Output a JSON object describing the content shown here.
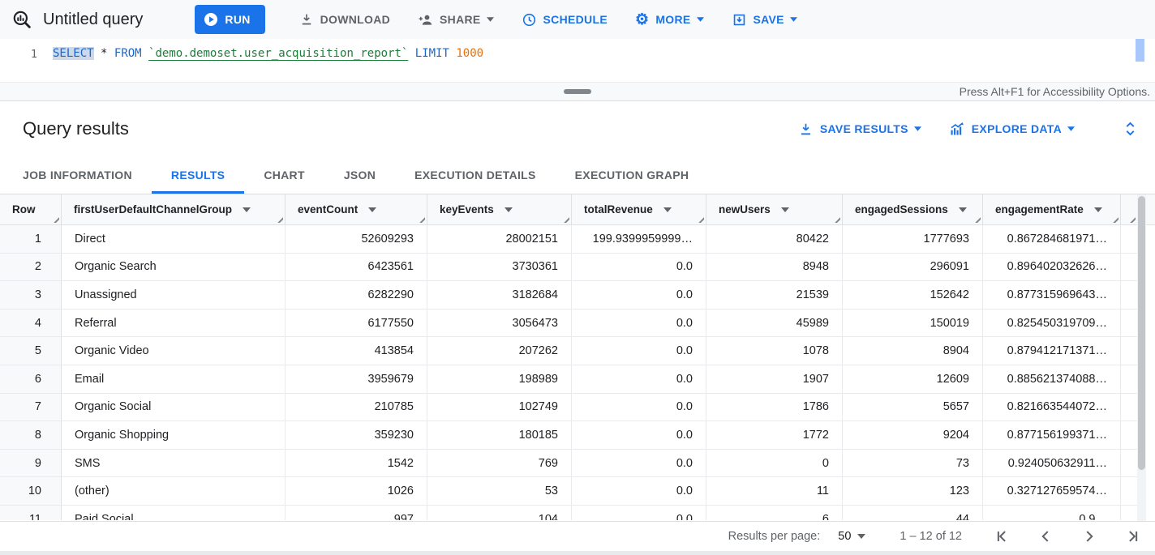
{
  "toolbar": {
    "query_icon": "query-magnifier-icon",
    "title": "Untitled query",
    "run": {
      "label": "RUN",
      "icon": "play-circle-icon"
    },
    "download": {
      "label": "DOWNLOAD",
      "icon": "download-icon"
    },
    "share": {
      "label": "SHARE",
      "icon": "person-add-icon"
    },
    "schedule": {
      "label": "SCHEDULE",
      "icon": "clock-icon"
    },
    "more": {
      "label": "MORE",
      "icon": "gear-icon"
    },
    "save": {
      "label": "SAVE",
      "icon": "save-icon"
    }
  },
  "editor": {
    "line_number": "1",
    "code": {
      "select": "SELECT",
      "star": "*",
      "from": "FROM",
      "table_ref": "`demo.demoset.user_acquisition_report`",
      "limit": "LIMIT",
      "limit_value": "1000"
    }
  },
  "statusbar": {
    "accessibility_hint": "Press Alt+F1 for Accessibility Options."
  },
  "results_header": {
    "title": "Query results",
    "save_results": {
      "label": "SAVE RESULTS",
      "icon": "download-icon"
    },
    "explore_data": {
      "label": "EXPLORE DATA",
      "icon": "chart-insights-icon"
    },
    "expand_icon": "unfold-icon"
  },
  "tabs": [
    {
      "label": "JOB INFORMATION",
      "active": false
    },
    {
      "label": "RESULTS",
      "active": true
    },
    {
      "label": "CHART",
      "active": false
    },
    {
      "label": "JSON",
      "active": false
    },
    {
      "label": "EXECUTION DETAILS",
      "active": false
    },
    {
      "label": "EXECUTION GRAPH",
      "active": false
    }
  ],
  "table": {
    "columns": [
      {
        "label": "Row",
        "sortable": false
      },
      {
        "label": "firstUserDefaultChannelGroup",
        "sortable": true
      },
      {
        "label": "eventCount",
        "sortable": true
      },
      {
        "label": "keyEvents",
        "sortable": true
      },
      {
        "label": "totalRevenue",
        "sortable": true
      },
      {
        "label": "newUsers",
        "sortable": true
      },
      {
        "label": "engagedSessions",
        "sortable": true
      },
      {
        "label": "engagementRate",
        "sortable": true
      }
    ],
    "rows": [
      [
        "1",
        "Direct",
        "52609293",
        "28002151",
        "199.9399959999…",
        "80422",
        "1777693",
        "0.867284681971…"
      ],
      [
        "2",
        "Organic Search",
        "6423561",
        "3730361",
        "0.0",
        "8948",
        "296091",
        "0.896402032626…"
      ],
      [
        "3",
        "Unassigned",
        "6282290",
        "3182684",
        "0.0",
        "21539",
        "152642",
        "0.877315969643…"
      ],
      [
        "4",
        "Referral",
        "6177550",
        "3056473",
        "0.0",
        "45989",
        "150019",
        "0.825450319709…"
      ],
      [
        "5",
        "Organic Video",
        "413854",
        "207262",
        "0.0",
        "1078",
        "8904",
        "0.879412171371…"
      ],
      [
        "6",
        "Email",
        "3959679",
        "198989",
        "0.0",
        "1907",
        "12609",
        "0.885621374088…"
      ],
      [
        "7",
        "Organic Social",
        "210785",
        "102749",
        "0.0",
        "1786",
        "5657",
        "0.821663544072…"
      ],
      [
        "8",
        "Organic Shopping",
        "359230",
        "180185",
        "0.0",
        "1772",
        "9204",
        "0.877156199371…"
      ],
      [
        "9",
        "SMS",
        "1542",
        "769",
        "0.0",
        "0",
        "73",
        "0.924050632911…"
      ],
      [
        "10",
        "(other)",
        "1026",
        "53",
        "0.0",
        "11",
        "123",
        "0.327127659574…"
      ],
      [
        "11",
        "Paid Social",
        "997",
        "104",
        "0.0",
        "6",
        "44",
        "0.9…"
      ]
    ],
    "clipped_last_row": true
  },
  "footer": {
    "results_per_page_label": "Results per page:",
    "page_size": "50",
    "range_label": "1 – 12 of 12",
    "pagination_icons": [
      "first-page-icon",
      "previous-page-icon",
      "next-page-icon",
      "last-page-icon"
    ]
  },
  "colors": {
    "accent": "#1a73e8",
    "keyword_blue": "#1967d2",
    "table_ref_green": "#188038",
    "number_literal_orange": "#e8710a",
    "selection_bg": "#cdd9e8"
  }
}
